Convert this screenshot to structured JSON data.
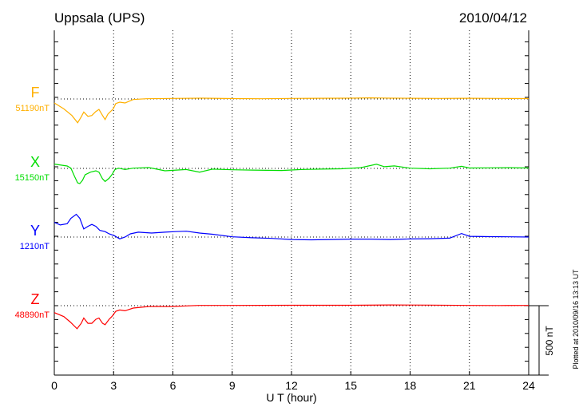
{
  "chart_data": {
    "type": "line",
    "title": "Uppsala (UPS)",
    "date": "2010/04/12",
    "xlabel": "U T (hour)",
    "xlim": [
      0,
      24
    ],
    "xticks": [
      "0",
      "3",
      "6",
      "9",
      "12",
      "15",
      "18",
      "21",
      "24"
    ],
    "scale_bar_label": "500 nT",
    "scale_bar_nT": 500,
    "plotted_note": "Plotted at 2010/09/16 13:13 UT",
    "series": [
      {
        "name": "F",
        "baseline_label": "51190nT",
        "color": "#ffb000",
        "x": [
          0,
          0.48,
          0.89,
          1.18,
          1.36,
          1.49,
          1.7,
          1.9,
          2.1,
          2.26,
          2.44,
          2.57,
          2.71,
          2.84,
          2.98,
          3.11,
          3.31,
          3.58,
          3.99,
          4.65,
          6,
          7.5,
          9,
          10.5,
          12,
          13.5,
          15,
          16,
          16.5,
          17,
          18,
          19.5,
          21,
          22.5,
          24
        ],
        "y": [
          -29,
          -71,
          -119,
          -171,
          -129,
          -94,
          -125,
          -119,
          -90,
          -75,
          -119,
          -148,
          -109,
          -91,
          -71,
          -33,
          -23,
          -29,
          -4,
          2,
          4,
          6,
          3,
          2,
          4,
          5,
          6,
          8,
          7,
          6,
          5,
          4,
          5,
          4,
          3
        ]
      },
      {
        "name": "X",
        "baseline_label": "15150nT",
        "color": "#00dd00",
        "x": [
          0,
          0.65,
          0.84,
          1.02,
          1.18,
          1.29,
          1.43,
          1.56,
          1.83,
          2.1,
          2.26,
          2.44,
          2.57,
          2.77,
          2.91,
          3.07,
          3.24,
          3.58,
          3.99,
          4.79,
          5.6,
          6.68,
          7.35,
          8,
          9,
          10,
          11.5,
          12.5,
          13.5,
          14.5,
          15.5,
          16.3,
          16.7,
          17.2,
          18,
          19,
          20,
          20.6,
          21,
          22,
          23,
          24
        ],
        "y": [
          31,
          17,
          2,
          -56,
          -104,
          -110,
          -85,
          -46,
          -27,
          -17,
          -27,
          -75,
          -94,
          -71,
          -46,
          -8,
          2,
          -8,
          2,
          6,
          -17,
          -8,
          -27,
          -5,
          -10,
          -12,
          -15,
          -8,
          -5,
          -3,
          5,
          30,
          12,
          18,
          2,
          -3,
          2,
          15,
          3,
          4,
          5,
          3
        ]
      },
      {
        "name": "Y",
        "baseline_label": "1210nT",
        "color": "#0000ff",
        "x": [
          0,
          0.3,
          0.65,
          0.84,
          1.11,
          1.29,
          1.49,
          1.7,
          1.9,
          2.1,
          2.3,
          2.57,
          2.77,
          3.04,
          3.31,
          3.58,
          3.85,
          4.25,
          4.92,
          5.6,
          6.14,
          6.68,
          7.35,
          8,
          9,
          10,
          11,
          12,
          13,
          14,
          15,
          16,
          17,
          18,
          19,
          20,
          20.6,
          21,
          22,
          23,
          24
        ],
        "y": [
          106,
          87,
          96,
          135,
          164,
          135,
          58,
          77,
          91,
          77,
          48,
          39,
          23,
          10,
          -13,
          0,
          23,
          35,
          29,
          35,
          39,
          42,
          29,
          20,
          2,
          -5,
          -10,
          -18,
          -20,
          -18,
          -15,
          -15,
          -18,
          -14,
          -12,
          -8,
          25,
          5,
          3,
          2,
          0
        ]
      },
      {
        "name": "Z",
        "baseline_label": "48890nT",
        "color": "#ff0000",
        "x": [
          0,
          0.48,
          0.81,
          1.15,
          1.36,
          1.49,
          1.7,
          1.9,
          2.1,
          2.26,
          2.44,
          2.57,
          2.77,
          2.91,
          3.11,
          3.31,
          3.58,
          3.99,
          4.79,
          6,
          7.3,
          9,
          12,
          15,
          17,
          19,
          21,
          22.5,
          24
        ],
        "y": [
          -50,
          -79,
          -118,
          -166,
          -127,
          -89,
          -127,
          -127,
          -98,
          -89,
          -127,
          -137,
          -98,
          -79,
          -40,
          -31,
          -37,
          -17,
          -6,
          -6,
          2,
          2,
          3,
          3,
          5,
          4,
          2,
          1,
          2
        ]
      }
    ]
  }
}
